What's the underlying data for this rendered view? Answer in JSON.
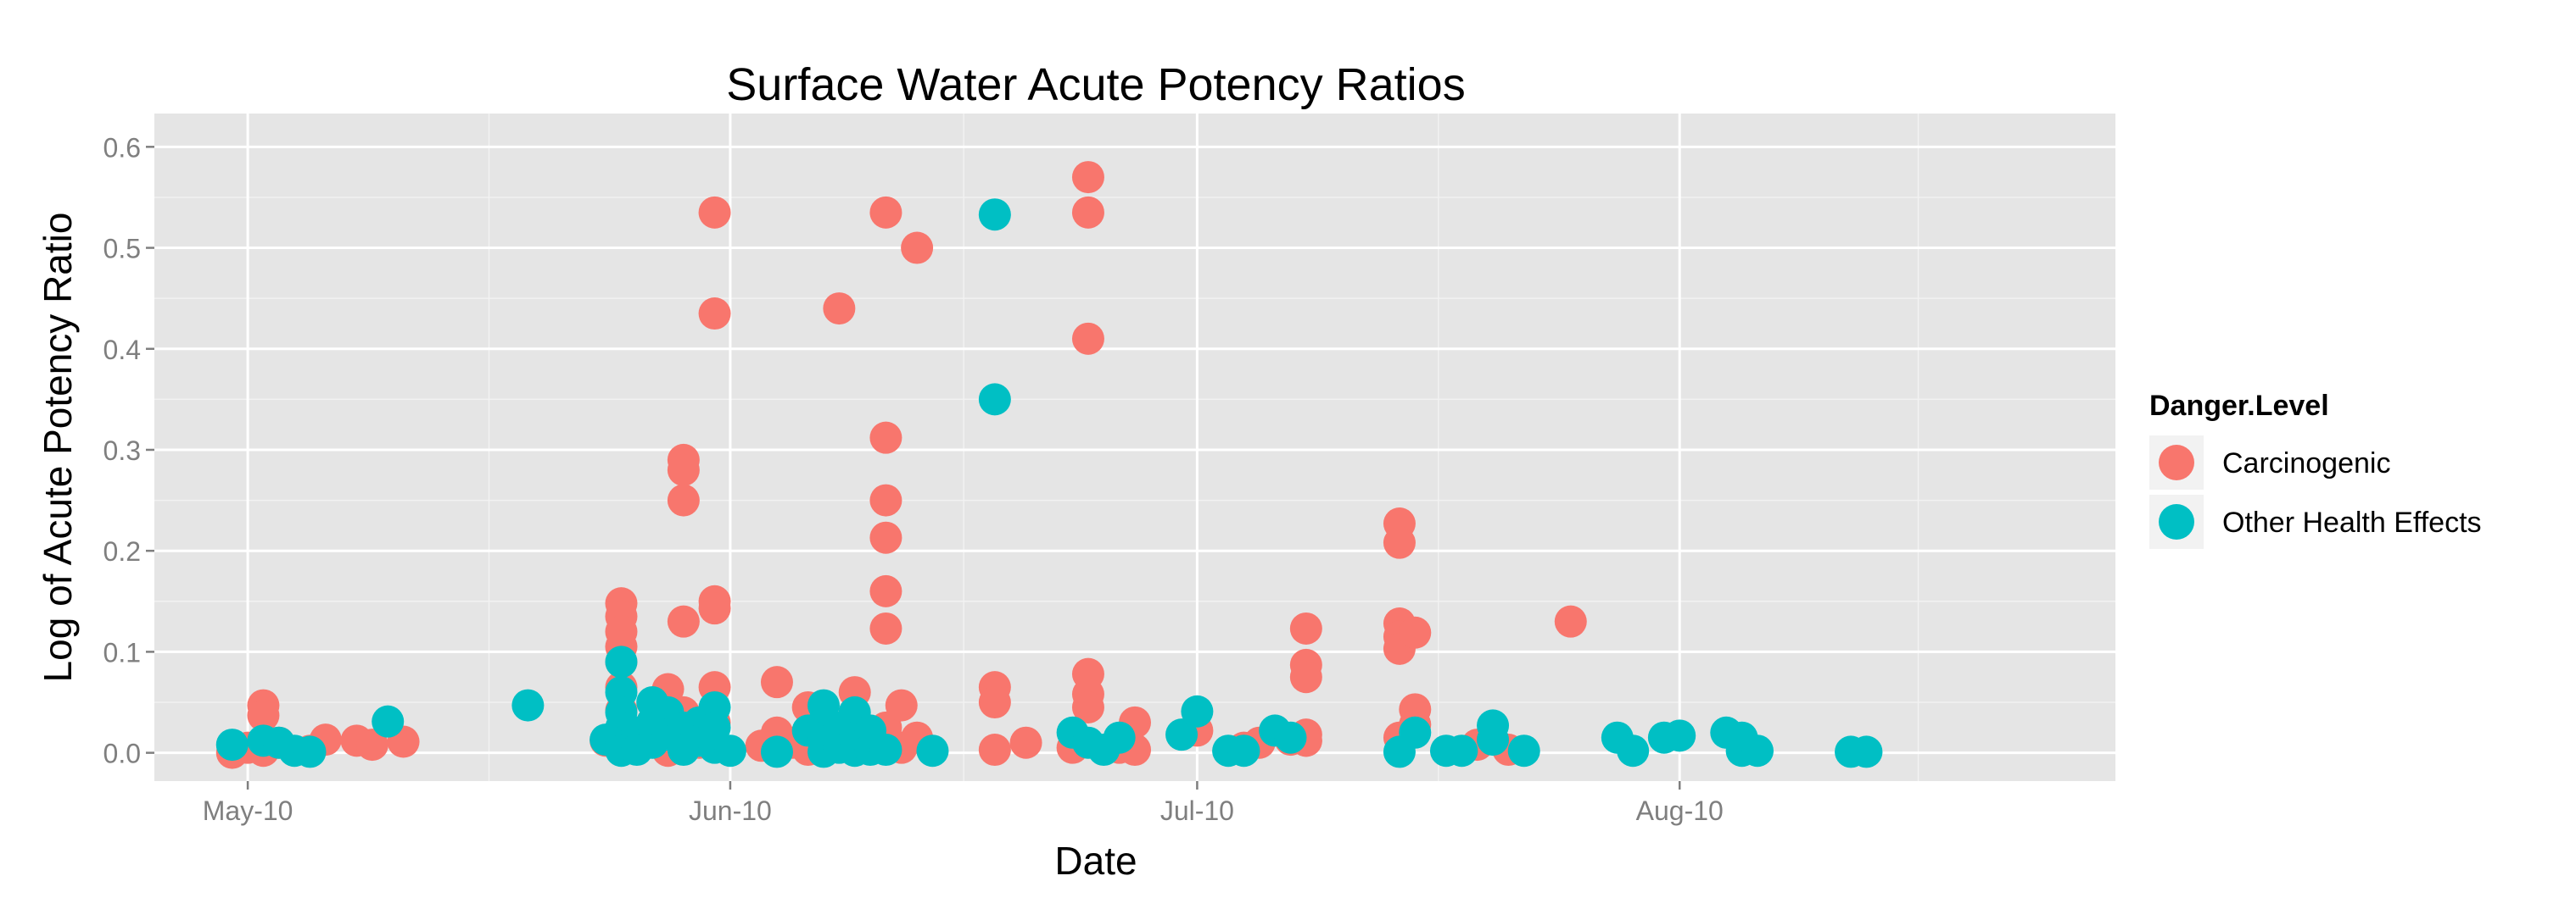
{
  "chart_data": {
    "type": "scatter",
    "title": "Surface Water Acute Potency Ratios",
    "xlabel": "Date",
    "ylabel": "Log of Acute Potency Ratio",
    "x_tick_labels": [
      "May-10",
      "Jun-10",
      "Jul-10",
      "Aug-10"
    ],
    "x_ticks": [
      "2010-05-01",
      "2010-06-01",
      "2010-07-01",
      "2010-08-01"
    ],
    "y_tick_labels": [
      "0.0",
      "0.1",
      "0.2",
      "0.3",
      "0.4",
      "0.5",
      "0.6"
    ],
    "y_ticks": [
      0.0,
      0.1,
      0.2,
      0.3,
      0.4,
      0.5,
      0.6
    ],
    "xlim": [
      "2010-04-25",
      "2010-08-29"
    ],
    "ylim": [
      -0.028,
      0.633
    ],
    "grid": true,
    "legend": {
      "title": "Danger.Level",
      "position": "right",
      "entries": [
        "Carcinogenic",
        "Other Health Effects"
      ]
    },
    "series": [
      {
        "name": "Carcinogenic",
        "color": "#F8766D",
        "points": [
          [
            "2010-04-30",
            0
          ],
          [
            "2010-05-01",
            0.005
          ],
          [
            "2010-05-02",
            0.047
          ],
          [
            "2010-05-02",
            0.037
          ],
          [
            "2010-05-02",
            0.002
          ],
          [
            "2010-05-03",
            0.01
          ],
          [
            "2010-05-05",
            0.002
          ],
          [
            "2010-05-06",
            0.013
          ],
          [
            "2010-05-08",
            0.012
          ],
          [
            "2010-05-09",
            0.008
          ],
          [
            "2010-05-11",
            0.011
          ],
          [
            "2010-05-24",
            0.012
          ],
          [
            "2010-05-25",
            0.148
          ],
          [
            "2010-05-25",
            0.135
          ],
          [
            "2010-05-25",
            0.12
          ],
          [
            "2010-05-25",
            0.105
          ],
          [
            "2010-05-25",
            0.09
          ],
          [
            "2010-05-25",
            0.065
          ],
          [
            "2010-05-25",
            0.042
          ],
          [
            "2010-05-25",
            0.02
          ],
          [
            "2010-05-26",
            0.005
          ],
          [
            "2010-05-27",
            0.015
          ],
          [
            "2010-05-27",
            0.03
          ],
          [
            "2010-05-28",
            0.063
          ],
          [
            "2010-05-28",
            0.002
          ],
          [
            "2010-05-29",
            0.29
          ],
          [
            "2010-05-29",
            0.28
          ],
          [
            "2010-05-29",
            0.25
          ],
          [
            "2010-05-29",
            0.13
          ],
          [
            "2010-05-29",
            0.04
          ],
          [
            "2010-05-29",
            0.02
          ],
          [
            "2010-05-30",
            0.01
          ],
          [
            "2010-05-31",
            0.535
          ],
          [
            "2010-05-31",
            0.435
          ],
          [
            "2010-05-31",
            0.15
          ],
          [
            "2010-05-31",
            0.143
          ],
          [
            "2010-05-31",
            0.065
          ],
          [
            "2010-05-31",
            0.03
          ],
          [
            "2010-06-03",
            0.007
          ],
          [
            "2010-06-04",
            0.07
          ],
          [
            "2010-06-04",
            0.02
          ],
          [
            "2010-06-05",
            0.01
          ],
          [
            "2010-06-06",
            0.045
          ],
          [
            "2010-06-06",
            0.003
          ],
          [
            "2010-06-07",
            0.025
          ],
          [
            "2010-06-08",
            0.44
          ],
          [
            "2010-06-08",
            0.01
          ],
          [
            "2010-06-09",
            0.06
          ],
          [
            "2010-06-09",
            0.015
          ],
          [
            "2010-06-11",
            0.535
          ],
          [
            "2010-06-11",
            0.312
          ],
          [
            "2010-06-11",
            0.25
          ],
          [
            "2010-06-11",
            0.213
          ],
          [
            "2010-06-11",
            0.16
          ],
          [
            "2010-06-11",
            0.123
          ],
          [
            "2010-06-11",
            0.025
          ],
          [
            "2010-06-12",
            0.047
          ],
          [
            "2010-06-12",
            0.005
          ],
          [
            "2010-06-13",
            0.5
          ],
          [
            "2010-06-13",
            0.015
          ],
          [
            "2010-06-18",
            0.065
          ],
          [
            "2010-06-18",
            0.05
          ],
          [
            "2010-06-18",
            0.003
          ],
          [
            "2010-06-20",
            0.01
          ],
          [
            "2010-06-23",
            0.005
          ],
          [
            "2010-06-24",
            0.57
          ],
          [
            "2010-06-24",
            0.535
          ],
          [
            "2010-06-24",
            0.41
          ],
          [
            "2010-06-24",
            0.078
          ],
          [
            "2010-06-24",
            0.058
          ],
          [
            "2010-06-24",
            0.045
          ],
          [
            "2010-06-26",
            0.005
          ],
          [
            "2010-06-27",
            0.03
          ],
          [
            "2010-06-27",
            0.003
          ],
          [
            "2010-07-01",
            0.022
          ],
          [
            "2010-07-04",
            0.005
          ],
          [
            "2010-07-05",
            0.01
          ],
          [
            "2010-07-07",
            0.013
          ],
          [
            "2010-07-08",
            0.018
          ],
          [
            "2010-07-08",
            0.012
          ],
          [
            "2010-07-08",
            0.123
          ],
          [
            "2010-07-08",
            0.087
          ],
          [
            "2010-07-08",
            0.075
          ],
          [
            "2010-07-08",
            0.012
          ],
          [
            "2010-07-14",
            0.227
          ],
          [
            "2010-07-14",
            0.208
          ],
          [
            "2010-07-14",
            0.128
          ],
          [
            "2010-07-14",
            0.115
          ],
          [
            "2010-07-14",
            0.103
          ],
          [
            "2010-07-14",
            0.015
          ],
          [
            "2010-07-15",
            0.119
          ],
          [
            "2010-07-15",
            0.043
          ],
          [
            "2010-07-15",
            0.028
          ],
          [
            "2010-07-19",
            0.008
          ],
          [
            "2010-07-21",
            0.003
          ],
          [
            "2010-07-25",
            0.13
          ]
        ]
      },
      {
        "name": "Other Health Effects",
        "color": "#00BFC4",
        "points": [
          [
            "2010-04-30",
            0.008
          ],
          [
            "2010-05-02",
            0.012
          ],
          [
            "2010-05-03",
            0.01
          ],
          [
            "2010-05-04",
            0.002
          ],
          [
            "2010-05-05",
            0.001
          ],
          [
            "2010-05-10",
            0.031
          ],
          [
            "2010-05-19",
            0.047
          ],
          [
            "2010-05-24",
            0.013
          ],
          [
            "2010-05-25",
            0.09
          ],
          [
            "2010-05-25",
            0.06
          ],
          [
            "2010-05-25",
            0.04
          ],
          [
            "2010-05-25",
            0.025
          ],
          [
            "2010-05-25",
            0.01
          ],
          [
            "2010-05-25",
            0.002
          ],
          [
            "2010-05-26",
            0.02
          ],
          [
            "2010-05-26",
            0.003
          ],
          [
            "2010-05-27",
            0.05
          ],
          [
            "2010-05-27",
            0.03
          ],
          [
            "2010-05-27",
            0.01
          ],
          [
            "2010-05-28",
            0.04
          ],
          [
            "2010-05-28",
            0.018
          ],
          [
            "2010-05-29",
            0.025
          ],
          [
            "2010-05-29",
            0.003
          ],
          [
            "2010-05-30",
            0.03
          ],
          [
            "2010-05-30",
            0.012
          ],
          [
            "2010-05-31",
            0.045
          ],
          [
            "2010-05-31",
            0.025
          ],
          [
            "2010-05-31",
            0.005
          ],
          [
            "2010-06-01",
            0.002
          ],
          [
            "2010-06-04",
            0.001
          ],
          [
            "2010-06-06",
            0.022
          ],
          [
            "2010-06-07",
            0.047
          ],
          [
            "2010-06-07",
            0.03
          ],
          [
            "2010-06-07",
            0.015
          ],
          [
            "2010-06-07",
            0.001
          ],
          [
            "2010-06-08",
            0.025
          ],
          [
            "2010-06-08",
            0.005
          ],
          [
            "2010-06-09",
            0.04
          ],
          [
            "2010-06-09",
            0.015
          ],
          [
            "2010-06-09",
            0.002
          ],
          [
            "2010-06-10",
            0.022
          ],
          [
            "2010-06-10",
            0.003
          ],
          [
            "2010-06-11",
            0.003
          ],
          [
            "2010-06-14",
            0.002
          ],
          [
            "2010-06-18",
            0.533
          ],
          [
            "2010-06-18",
            0.35
          ],
          [
            "2010-06-23",
            0.02
          ],
          [
            "2010-06-24",
            0.01
          ],
          [
            "2010-06-25",
            0.003
          ],
          [
            "2010-06-26",
            0.015
          ],
          [
            "2010-06-30",
            0.018
          ],
          [
            "2010-07-01",
            0.041
          ],
          [
            "2010-07-03",
            0.002
          ],
          [
            "2010-07-04",
            0.002
          ],
          [
            "2010-07-06",
            0.022
          ],
          [
            "2010-07-07",
            0.015
          ],
          [
            "2010-07-14",
            0.001
          ],
          [
            "2010-07-15",
            0.02
          ],
          [
            "2010-07-17",
            0.002
          ],
          [
            "2010-07-18",
            0.002
          ],
          [
            "2010-07-20",
            0.027
          ],
          [
            "2010-07-20",
            0.013
          ],
          [
            "2010-07-22",
            0.002
          ],
          [
            "2010-07-28",
            0.015
          ],
          [
            "2010-07-29",
            0.002
          ],
          [
            "2010-07-31",
            0.015
          ],
          [
            "2010-08-01",
            0.017
          ],
          [
            "2010-08-04",
            0.02
          ],
          [
            "2010-08-05",
            0.015
          ],
          [
            "2010-08-05",
            0.002
          ],
          [
            "2010-08-06",
            0.002
          ],
          [
            "2010-08-12",
            0.001
          ],
          [
            "2010-08-13",
            0.001
          ]
        ]
      }
    ]
  }
}
